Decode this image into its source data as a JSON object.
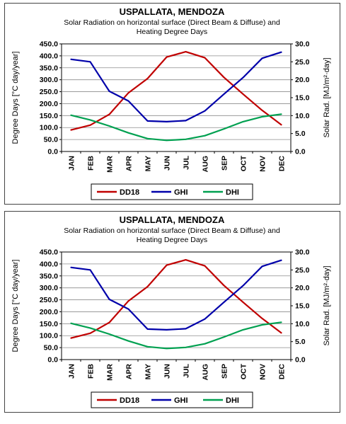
{
  "chart_data": [
    {
      "type": "line",
      "title": "USPALLATA, MENDOZA",
      "subtitle_lines": [
        "Solar Radiation on horizontal surface (Direct Beam & Diffuse) and",
        "Heating Degree Days"
      ],
      "categories": [
        "JAN",
        "FEB",
        "MAR",
        "APR",
        "MAY",
        "JUN",
        "JUL",
        "AUG",
        "SEP",
        "OCT",
        "NOV",
        "DEC"
      ],
      "ylabel": "Degree Days [°C day/year]",
      "y2label": "Solar Rad. [MJ/m²·day]",
      "ylim": [
        0,
        450
      ],
      "y2lim": [
        0,
        30
      ],
      "yticks": [
        "0.0",
        "50.0",
        "100.0",
        "150.0",
        "200.0",
        "250.0",
        "300.0",
        "350.0",
        "400.0",
        "450.0"
      ],
      "y2ticks": [
        "0.0",
        "5.0",
        "10.0",
        "15.0",
        "20.0",
        "25.0",
        "30.0"
      ],
      "grid": true,
      "legend_position": "bottom",
      "series": [
        {
          "name": "DD18",
          "axis": "left",
          "color": "#c00000",
          "values": [
            90,
            110,
            155,
            245,
            305,
            395,
            417,
            392,
            310,
            240,
            172,
            112
          ]
        },
        {
          "name": "GHI",
          "axis": "right",
          "color": "#0000aa",
          "values": [
            25.7,
            25.0,
            16.8,
            14.1,
            8.5,
            8.3,
            8.6,
            11.3,
            16.0,
            20.6,
            26.0,
            27.7
          ]
        },
        {
          "name": "DHI",
          "axis": "right",
          "color": "#00a050",
          "values": [
            10.1,
            8.8,
            7.1,
            5.2,
            3.6,
            3.1,
            3.4,
            4.4,
            6.3,
            8.3,
            9.7,
            10.4
          ]
        }
      ]
    },
    {
      "type": "line",
      "title": "USPALLATA, MENDOZA",
      "subtitle_lines": [
        "Solar Radiation on horizontal surface (Direct Beam & Diffuse) and",
        "Heating Degree Days"
      ],
      "categories": [
        "JAN",
        "FEB",
        "MAR",
        "APR",
        "MAY",
        "JUN",
        "JUL",
        "AUG",
        "SEP",
        "OCT",
        "NOV",
        "DEC"
      ],
      "ylabel": "Degree Days [°C day/year]",
      "y2label": "Solar Rad. [MJ/m²·day]",
      "ylim": [
        0,
        450
      ],
      "y2lim": [
        0,
        30
      ],
      "yticks": [
        "0.0",
        "50.0",
        "100.0",
        "150.0",
        "200.0",
        "250.0",
        "300.0",
        "350.0",
        "400.0",
        "450.0"
      ],
      "y2ticks": [
        "0.0",
        "5.0",
        "10.0",
        "15.0",
        "20.0",
        "25.0",
        "30.0"
      ],
      "grid": true,
      "legend_position": "bottom",
      "series": [
        {
          "name": "DD18",
          "axis": "left",
          "color": "#c00000",
          "values": [
            90,
            110,
            155,
            245,
            305,
            395,
            417,
            392,
            310,
            240,
            172,
            112
          ]
        },
        {
          "name": "GHI",
          "axis": "right",
          "color": "#0000aa",
          "values": [
            25.7,
            25.0,
            16.8,
            14.1,
            8.5,
            8.3,
            8.6,
            11.3,
            16.0,
            20.6,
            26.0,
            27.7
          ]
        },
        {
          "name": "DHI",
          "axis": "right",
          "color": "#00a050",
          "values": [
            10.1,
            8.8,
            7.1,
            5.2,
            3.6,
            3.1,
            3.4,
            4.4,
            6.3,
            8.3,
            9.7,
            10.4
          ]
        }
      ]
    }
  ]
}
